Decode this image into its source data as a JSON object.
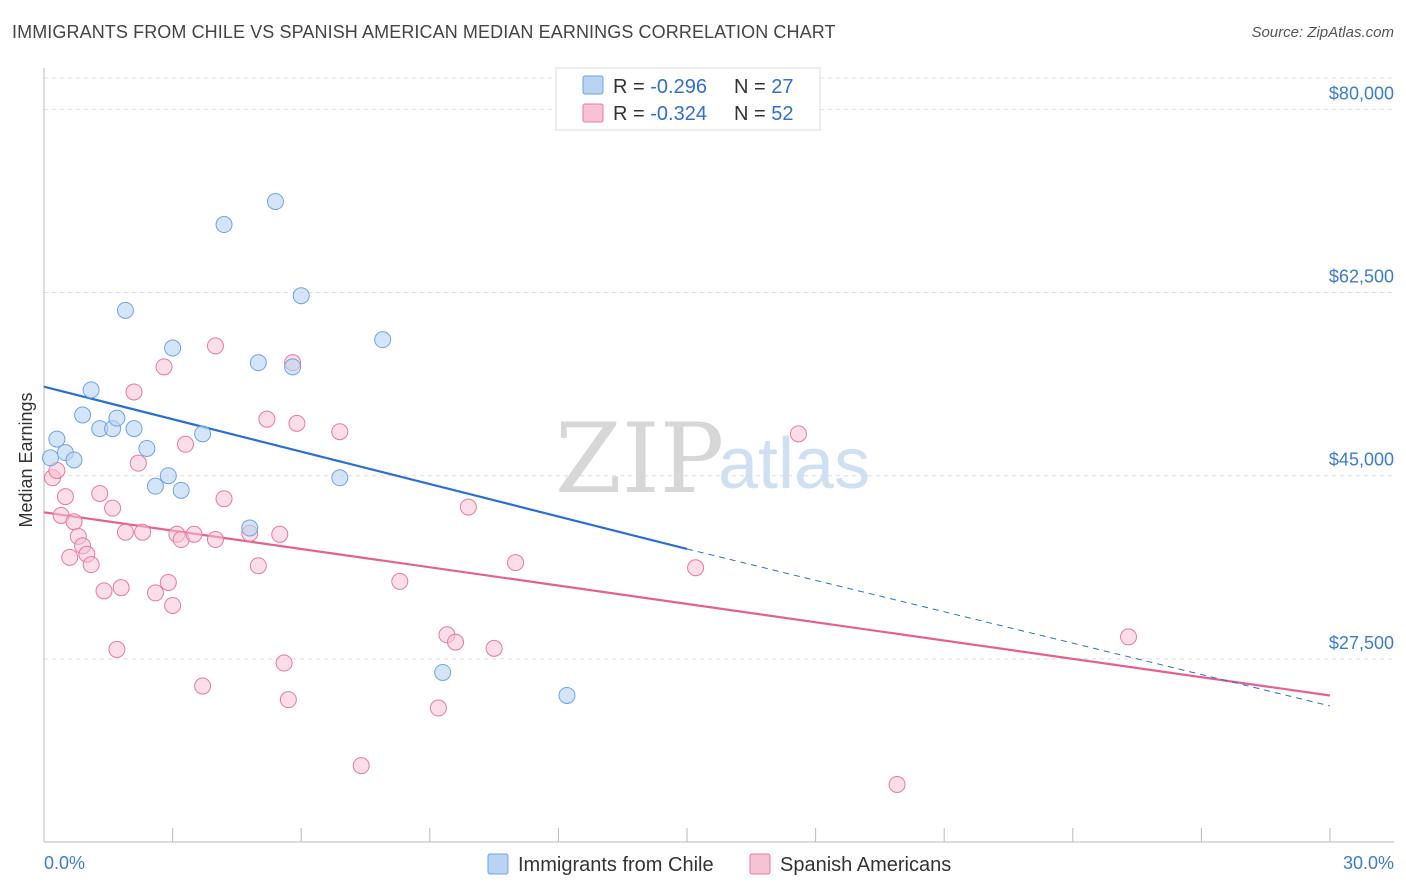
{
  "header": {
    "title": "IMMIGRANTS FROM CHILE VS SPANISH AMERICAN MEDIAN EARNINGS CORRELATION CHART",
    "source": "Source: ZipAtlas.com"
  },
  "watermark": {
    "zip": "ZIP",
    "atlas": "atlas"
  },
  "colors": {
    "blue": "#6fa3e6",
    "blue_fill": "#b9d3f3",
    "blue_line": "#2a6fd1",
    "pink": "#e8799e",
    "pink_fill": "#f7c3d3",
    "pink_line": "#e2628f",
    "grid": "#dddddd",
    "tick_text": "#3d7cc9"
  },
  "legend": {
    "rows": [
      {
        "r_label": "R = ",
        "r_value": "-0.296",
        "n_label": "N = ",
        "n_value": "27"
      },
      {
        "r_label": "R = ",
        "r_value": "-0.324",
        "n_label": "N = ",
        "n_value": "52"
      }
    ]
  },
  "bottom_legend": {
    "items": [
      "Immigrants from Chile",
      "Spanish Americans"
    ]
  },
  "chart_data": {
    "type": "scatter",
    "title": "IMMIGRANTS FROM CHILE VS SPANISH AMERICAN MEDIAN EARNINGS CORRELATION CHART",
    "xlabel": "",
    "ylabel": "Median Earnings",
    "xlim": [
      0,
      30
    ],
    "ylim": [
      10000,
      83000
    ],
    "x_tick_labels": [
      "0.0%",
      "30.0%"
    ],
    "y_ticks": [
      27500,
      45000,
      62500,
      80000
    ],
    "y_tick_labels": [
      "$27,500",
      "$45,000",
      "$62,500",
      "$80,000"
    ],
    "grid": true,
    "legend_position": "top-center",
    "series": [
      {
        "name": "Immigrants from Chile",
        "points": [
          [
            0.3,
            48500
          ],
          [
            0.5,
            47200
          ],
          [
            0.7,
            46500
          ],
          [
            1.1,
            53200
          ],
          [
            0.9,
            50800
          ],
          [
            1.3,
            49500
          ],
          [
            1.6,
            49500
          ],
          [
            1.7,
            50500
          ],
          [
            2.1,
            49500
          ],
          [
            2.4,
            47600
          ],
          [
            2.6,
            44000
          ],
          [
            1.9,
            60800
          ],
          [
            2.9,
            45000
          ],
          [
            3.0,
            57200
          ],
          [
            3.2,
            43600
          ],
          [
            3.7,
            49000
          ],
          [
            4.2,
            69000
          ],
          [
            4.8,
            40000
          ],
          [
            5.0,
            55800
          ],
          [
            5.4,
            71200
          ],
          [
            5.8,
            55400
          ],
          [
            6.0,
            62200
          ],
          [
            6.9,
            44800
          ],
          [
            7.9,
            58000
          ],
          [
            9.3,
            26200
          ],
          [
            12.2,
            24000
          ],
          [
            0.15,
            46700
          ]
        ],
        "trend": {
          "x": [
            0,
            15
          ],
          "y": [
            53500,
            38000
          ]
        },
        "trend_extension": {
          "x": [
            15,
            30
          ],
          "y": [
            38000,
            23000
          ]
        }
      },
      {
        "name": "Spanish Americans",
        "points": [
          [
            0.2,
            44800
          ],
          [
            0.3,
            45500
          ],
          [
            0.4,
            41200
          ],
          [
            0.5,
            43000
          ],
          [
            0.6,
            37200
          ],
          [
            0.7,
            40600
          ],
          [
            0.8,
            39200
          ],
          [
            0.9,
            38300
          ],
          [
            1.0,
            37500
          ],
          [
            1.1,
            36500
          ],
          [
            1.3,
            43300
          ],
          [
            1.4,
            34000
          ],
          [
            1.6,
            41900
          ],
          [
            1.7,
            28400
          ],
          [
            1.8,
            34300
          ],
          [
            1.9,
            39600
          ],
          [
            2.1,
            53000
          ],
          [
            2.2,
            46200
          ],
          [
            2.3,
            39600
          ],
          [
            2.6,
            33800
          ],
          [
            2.8,
            55400
          ],
          [
            2.9,
            34800
          ],
          [
            3.0,
            32600
          ],
          [
            3.1,
            39400
          ],
          [
            3.2,
            38900
          ],
          [
            3.3,
            48000
          ],
          [
            3.5,
            39400
          ],
          [
            3.7,
            24900
          ],
          [
            4.0,
            38900
          ],
          [
            4.0,
            57400
          ],
          [
            4.2,
            42800
          ],
          [
            4.8,
            39500
          ],
          [
            5.0,
            36400
          ],
          [
            5.2,
            50400
          ],
          [
            5.5,
            39400
          ],
          [
            5.6,
            27100
          ],
          [
            5.7,
            23600
          ],
          [
            5.8,
            55800
          ],
          [
            5.9,
            50000
          ],
          [
            6.9,
            49200
          ],
          [
            7.4,
            17300
          ],
          [
            8.3,
            34900
          ],
          [
            9.2,
            22800
          ],
          [
            9.4,
            29800
          ],
          [
            9.6,
            29100
          ],
          [
            9.9,
            42000
          ],
          [
            10.5,
            28500
          ],
          [
            11.0,
            36700
          ],
          [
            15.2,
            36200
          ],
          [
            17.6,
            49000
          ],
          [
            19.9,
            15500
          ],
          [
            25.3,
            29600
          ]
        ],
        "trend": {
          "x": [
            0,
            30
          ],
          "y": [
            41500,
            24000
          ]
        }
      }
    ]
  }
}
